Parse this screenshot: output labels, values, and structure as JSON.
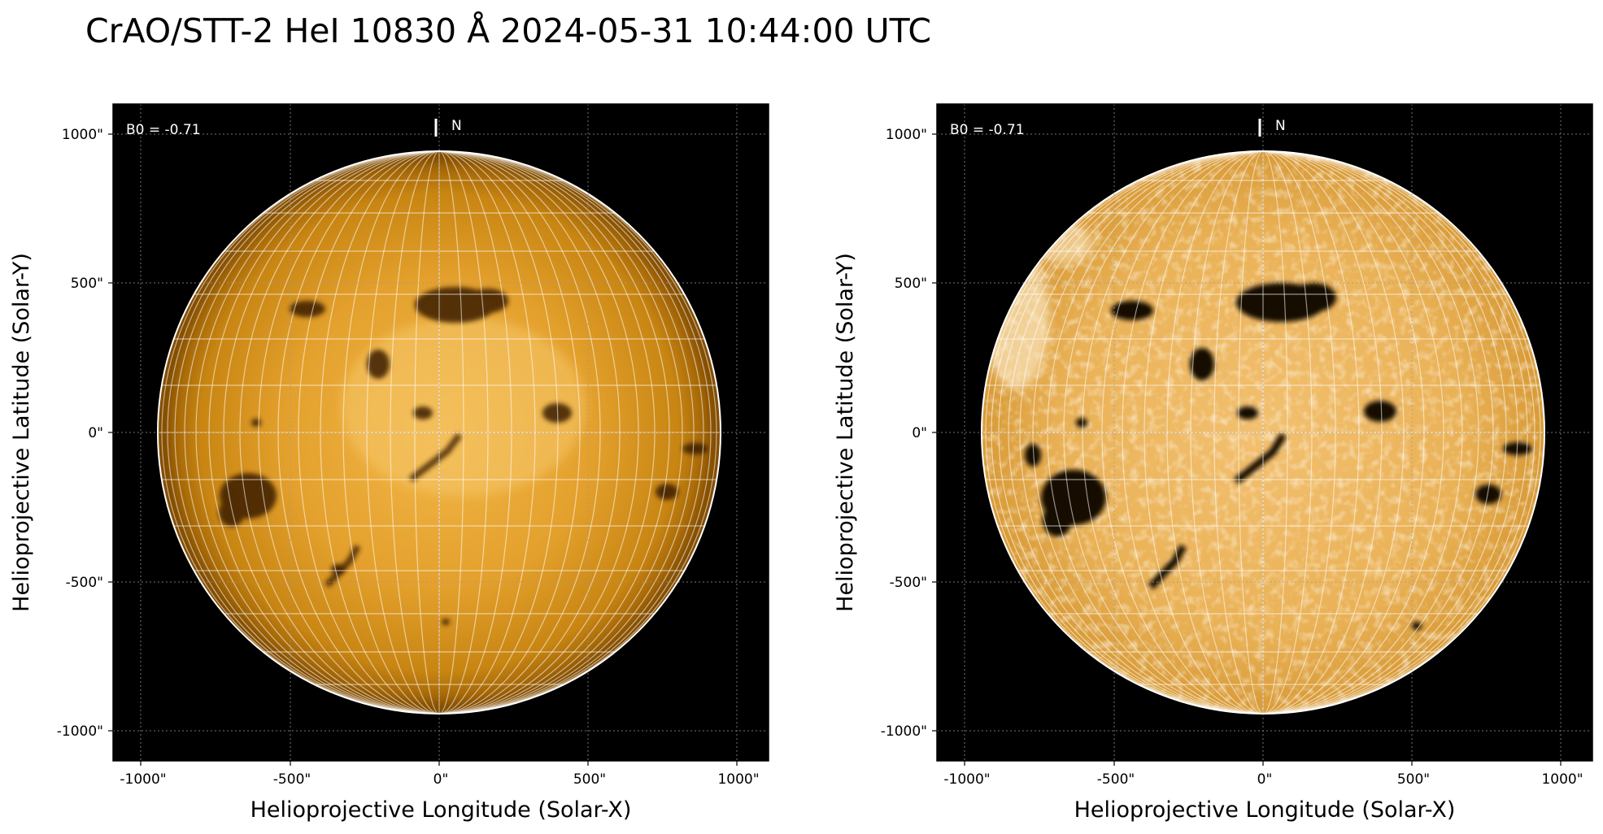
{
  "figure": {
    "title": "CrAO/STT-2 HeI 10830 Å 2024-05-31 10:44:00 UTC"
  },
  "panels": [
    {
      "b0_text": "B0 = -0.71",
      "north_label": "N",
      "x_label": "Helioprojective Longitude (Solar-X)",
      "y_label": "Helioprojective Latitude (Solar-Y)",
      "x_ticks": [
        "-1000\"",
        "-500\"",
        "0\"",
        "500\"",
        "1000\""
      ],
      "y_ticks": [
        "1000\"",
        "500\"",
        "0\"",
        "-500\"",
        "-1000\""
      ],
      "image_style": "original"
    },
    {
      "b0_text": "B0 = -0.71",
      "north_label": "N",
      "x_label": "Helioprojective Longitude (Solar-X)",
      "y_label": "Helioprojective Latitude (Solar-Y)",
      "x_ticks": [
        "-1000\"",
        "-500\"",
        "0\"",
        "500\"",
        "1000\""
      ],
      "y_ticks": [
        "1000\"",
        "500\"",
        "0\"",
        "-500\"",
        "-1000\""
      ],
      "image_style": "enhanced"
    }
  ],
  "colors": {
    "background": "#000000",
    "disk_center": "#f0b040",
    "disk_edge": "#a86500",
    "enhanced_light": "#fbe4b2",
    "dark_feature": "#1a0e00"
  }
}
